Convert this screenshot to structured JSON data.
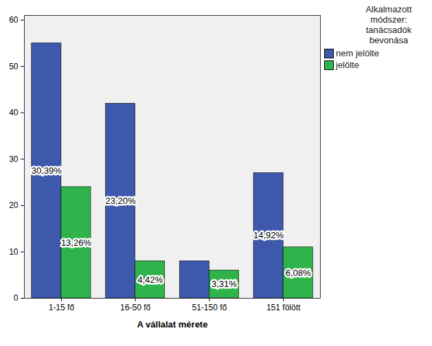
{
  "chart_data": {
    "type": "bar",
    "x_label": "A vállalat mérete",
    "legend_title": "Alkalmazott módszer: tanácsadók bevonása",
    "legend": "right",
    "categories": [
      "1-15 fő",
      "16-50 fő",
      "51-150 fő",
      "151 fölött"
    ],
    "series": [
      {
        "name": "nem jelölte",
        "color": "#3e58ac",
        "values": [
          55,
          42,
          8,
          27
        ],
        "labels": [
          "30,39%",
          "23,20%",
          null,
          "14,92%"
        ]
      },
      {
        "name": "jelölte",
        "color": "#2fb34b",
        "values": [
          24,
          8,
          6,
          11
        ],
        "labels": [
          "13,26%",
          "4,42%",
          "3,31%",
          "6,08%"
        ]
      }
    ],
    "ylim": [
      0,
      61
    ],
    "yticks": [
      0,
      10,
      20,
      30,
      40,
      50,
      60
    ],
    "grid": false
  }
}
